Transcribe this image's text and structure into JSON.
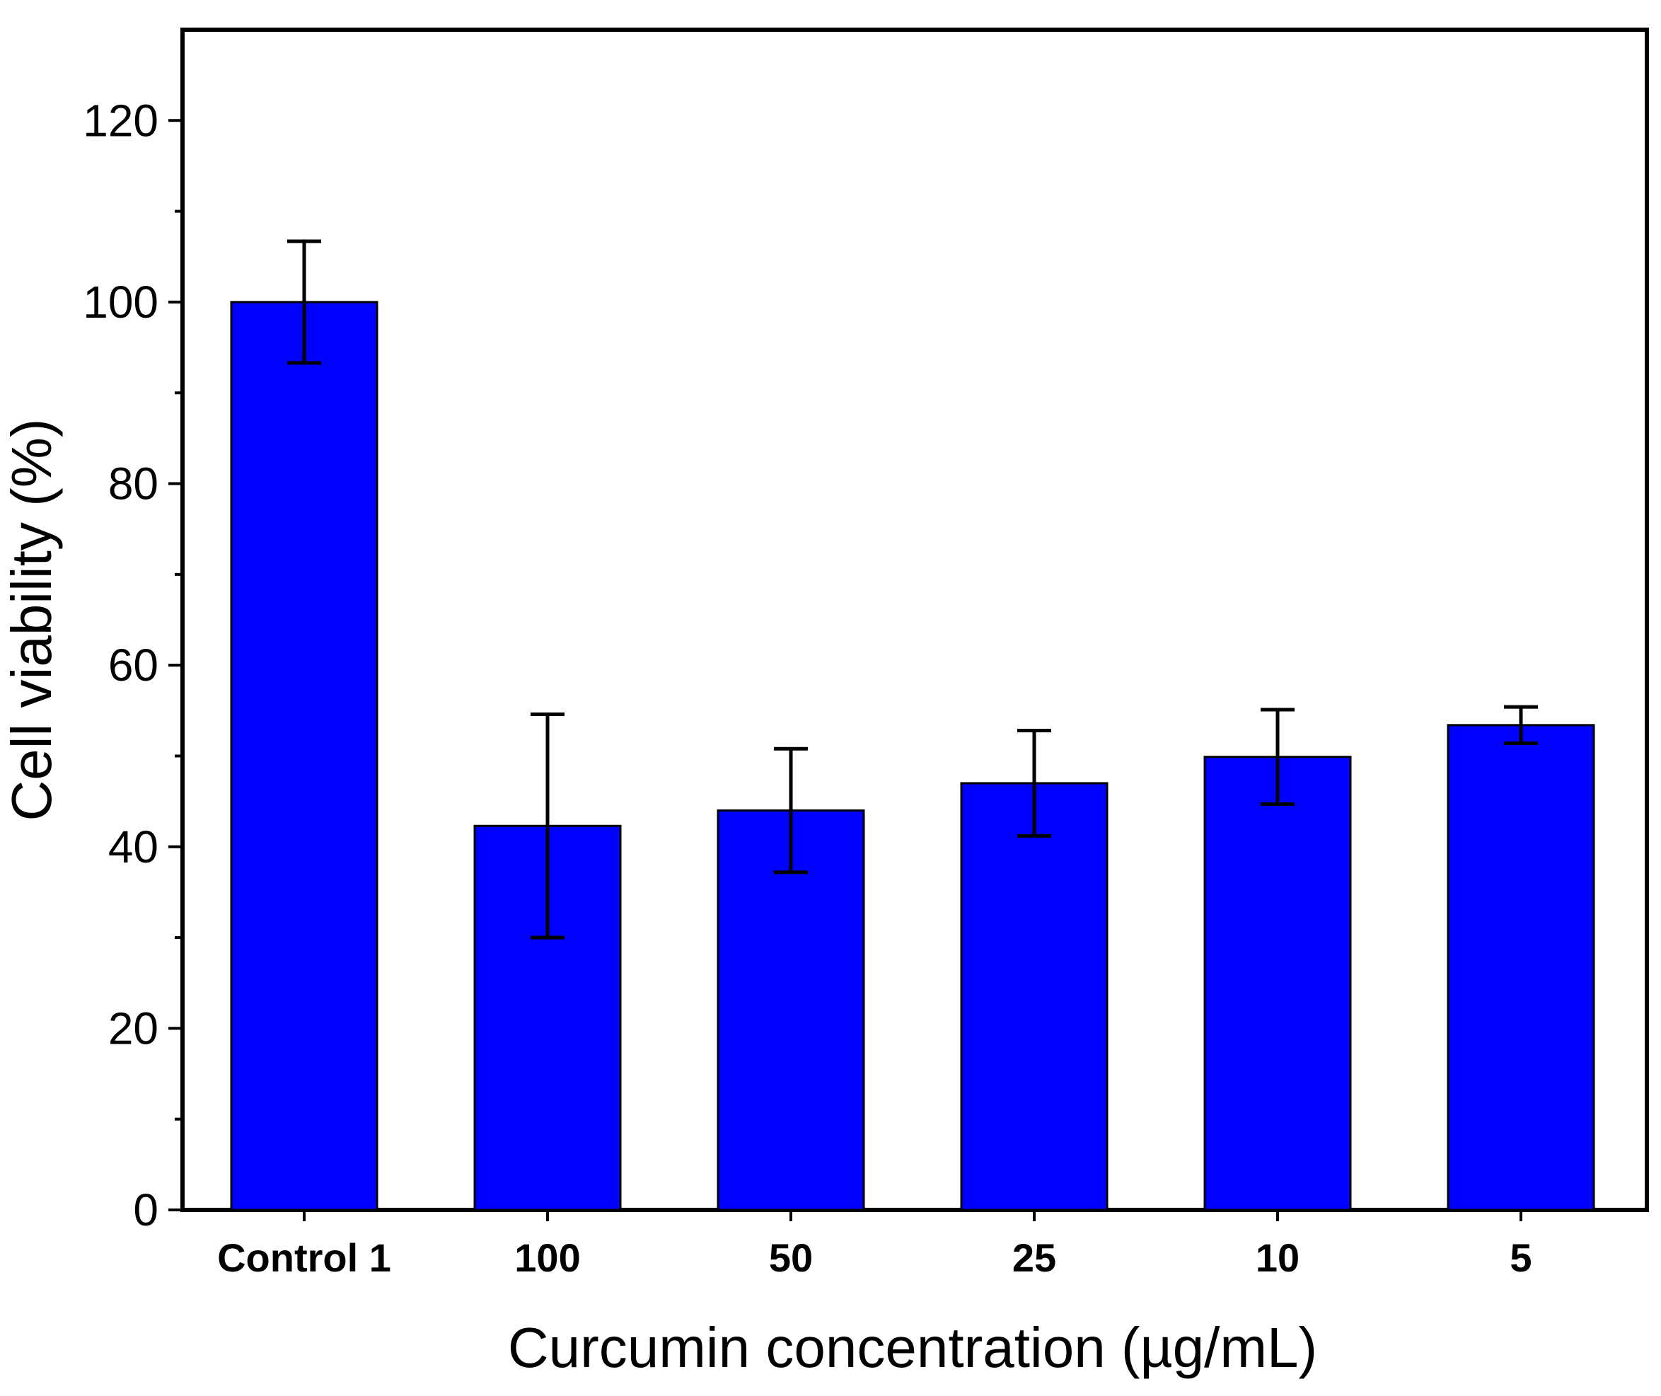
{
  "chart_data": {
    "type": "bar",
    "title": "",
    "xlabel": "Curcumin concentration (µg/mL)",
    "ylabel": "Cell viability (%)",
    "categories": [
      "Control 1",
      "100",
      "50",
      "25",
      "10",
      "5"
    ],
    "series": [
      {
        "name": "Cell viability",
        "values": [
          100,
          42.3,
          44.0,
          47.0,
          49.9,
          53.4
        ],
        "errors": [
          6.7,
          12.3,
          6.8,
          5.8,
          5.2,
          2.0
        ],
        "color": "#0000ff"
      }
    ],
    "ylim": [
      0,
      130
    ],
    "yticks": [
      0,
      20,
      40,
      60,
      80,
      100,
      120
    ],
    "y_minor_step": 10,
    "grid": false,
    "legend": "none"
  }
}
